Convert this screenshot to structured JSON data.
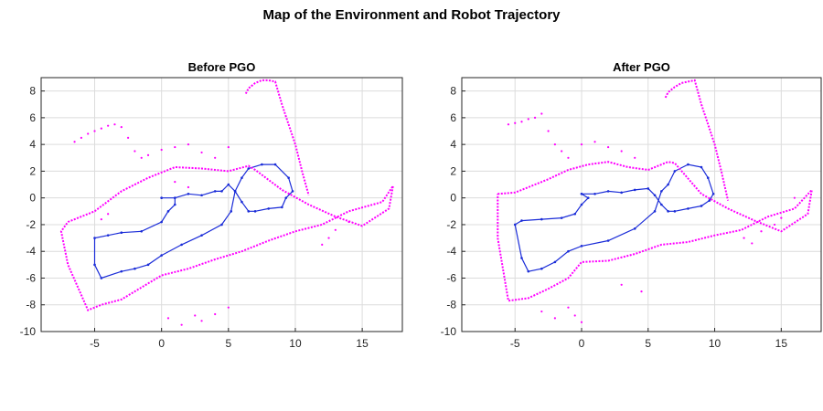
{
  "figure": {
    "title": "Map of the Environment and Robot Trajectory"
  },
  "colors": {
    "map_points": "#ff00ff",
    "trajectory": "#1a2cd8",
    "grid": "#dcdcdc",
    "axes": "#262626"
  },
  "chart_data": [
    {
      "type": "scatter",
      "title": "Before PGO",
      "xlabel": "",
      "ylabel": "",
      "xlim": [
        -9,
        18
      ],
      "ylim": [
        -10,
        9
      ],
      "xticks": [
        -5,
        0,
        5,
        10,
        15
      ],
      "yticks": [
        -10,
        -8,
        -6,
        -4,
        -2,
        0,
        2,
        4,
        6,
        8
      ],
      "grid": true,
      "series": [
        {
          "kind": "trajectory",
          "color": "#1a2cd8",
          "x": [
            0,
            1,
            2,
            3,
            4,
            4.5,
            5,
            5.5,
            6,
            6.5,
            7,
            8,
            9,
            9.3,
            9.8,
            9.5,
            8.5,
            7.5,
            6.5,
            6,
            5.5,
            5.2,
            4.5,
            3,
            1.5,
            0,
            -1,
            -2,
            -3,
            -4.5,
            -5,
            -5,
            -4,
            -3,
            -1.5,
            0,
            0.5,
            1,
            1,
            0
          ],
          "y": [
            0,
            0,
            0.3,
            0.2,
            0.5,
            0.5,
            1.0,
            0.5,
            -0.3,
            -1.0,
            -1.0,
            -0.8,
            -0.7,
            0,
            0.5,
            1.5,
            2.5,
            2.5,
            2.2,
            1.5,
            0.5,
            -1.0,
            -2.0,
            -2.8,
            -3.5,
            -4.3,
            -5.0,
            -5.3,
            -5.5,
            -6.0,
            -5.0,
            -3.0,
            -2.8,
            -2.6,
            -2.5,
            -1.8,
            -1.0,
            -0.5,
            0,
            0
          ]
        },
        {
          "kind": "map-outline",
          "color": "#ff00ff",
          "x": [
            -7,
            -5,
            -3,
            -1,
            1,
            3,
            5,
            6.5,
            7,
            9,
            11,
            13,
            15,
            17,
            17.3,
            16.5,
            14,
            12,
            10,
            8,
            6,
            4,
            2,
            0,
            -2,
            -3,
            -4.5,
            -5.5,
            -7,
            -7.5,
            -7
          ],
          "y": [
            -1.8,
            -1.0,
            0.5,
            1.5,
            2.3,
            2.2,
            2.0,
            2.4,
            2.1,
            0.6,
            -0.5,
            -1.4,
            -2.1,
            -0.8,
            0.9,
            -0.3,
            -1.0,
            -2.0,
            -2.5,
            -3.2,
            -4.0,
            -4.6,
            -5.3,
            -5.8,
            -7.0,
            -7.6,
            -8.0,
            -8.4,
            -5.0,
            -2.5,
            -1.8
          ]
        },
        {
          "kind": "map-wall-north",
          "color": "#ff00ff",
          "x": [
            6.3,
            6.5,
            7,
            7.5,
            8.0,
            8.5,
            9.0,
            9.5,
            10.0,
            10.5,
            11.0
          ],
          "y": [
            7.8,
            8.2,
            8.6,
            8.8,
            8.8,
            8.7,
            7.0,
            5.5,
            4.0,
            2.0,
            0.2
          ]
        },
        {
          "kind": "map-scatter",
          "color": "#ff00ff",
          "x": [
            -6.5,
            -6,
            -5.5,
            -5,
            -4.5,
            -4,
            -3.5,
            -3,
            -2.5,
            -2,
            -1.5,
            -1,
            0,
            1,
            2,
            3,
            4,
            5,
            0.5,
            1.5,
            2.5,
            -4,
            -4.5,
            12,
            12.5,
            13,
            14,
            3,
            4,
            5,
            1,
            2
          ],
          "y": [
            4.2,
            4.5,
            4.8,
            5.0,
            5.2,
            5.4,
            5.5,
            5.3,
            4.5,
            3.5,
            3.0,
            3.2,
            3.6,
            3.8,
            4.0,
            3.4,
            3.0,
            3.8,
            -9.0,
            -9.5,
            -8.8,
            -1.2,
            -1.6,
            -3.5,
            -3.0,
            -2.4,
            -1.8,
            -9.2,
            -8.7,
            -8.2,
            1.2,
            0.8
          ]
        }
      ]
    },
    {
      "type": "scatter",
      "title": "After PGO",
      "xlabel": "",
      "ylabel": "",
      "xlim": [
        -9,
        18
      ],
      "ylim": [
        -10,
        9
      ],
      "xticks": [
        -5,
        0,
        5,
        10,
        15
      ],
      "yticks": [
        -10,
        -8,
        -6,
        -4,
        -2,
        0,
        2,
        4,
        6,
        8
      ],
      "grid": true,
      "series": [
        {
          "kind": "trajectory",
          "color": "#1a2cd8",
          "x": [
            0,
            1,
            2,
            3,
            4,
            5,
            5.5,
            6,
            6.5,
            7,
            8,
            9,
            9.6,
            9.9,
            9.5,
            9.0,
            8.0,
            7.0,
            6.5,
            6.0,
            5.5,
            4.0,
            2.0,
            0,
            -1,
            -2,
            -3,
            -4,
            -4.5,
            -5,
            -4.5,
            -3,
            -1.5,
            -0.5,
            0,
            0.5,
            0
          ],
          "y": [
            0.3,
            0.3,
            0.5,
            0.4,
            0.6,
            0.7,
            0.2,
            -0.5,
            -1.0,
            -1.0,
            -0.8,
            -0.6,
            -0.2,
            0.3,
            1.5,
            2.3,
            2.5,
            2.0,
            1.0,
            0.5,
            -1.0,
            -2.3,
            -3.2,
            -3.6,
            -4.0,
            -4.8,
            -5.3,
            -5.5,
            -4.5,
            -2.0,
            -1.7,
            -1.6,
            -1.5,
            -1.2,
            -0.5,
            0,
            0.3
          ]
        },
        {
          "kind": "map-outline",
          "color": "#ff00ff",
          "x": [
            -6.3,
            -5,
            -4,
            -2.5,
            -1,
            0.5,
            2,
            3.5,
            5,
            6.5,
            7,
            9,
            11,
            13,
            15,
            17,
            17.3,
            16,
            14,
            12,
            10,
            8,
            6,
            4,
            2,
            0,
            -1,
            -2.5,
            -4,
            -5.5,
            -6.3,
            -6.3
          ],
          "y": [
            0.3,
            0.4,
            0.8,
            1.4,
            2.1,
            2.5,
            2.7,
            2.3,
            2.1,
            2.7,
            2.6,
            0.3,
            -0.8,
            -1.7,
            -2.5,
            -1.2,
            0.6,
            -0.8,
            -1.4,
            -2.4,
            -2.8,
            -3.3,
            -3.5,
            -4.2,
            -4.7,
            -4.8,
            -6.0,
            -6.8,
            -7.5,
            -7.7,
            -3.0,
            0.3
          ]
        },
        {
          "kind": "map-wall-north",
          "color": "#ff00ff",
          "x": [
            6.3,
            6.5,
            7,
            7.5,
            8.0,
            8.5,
            9.0,
            9.5,
            10.0,
            10.5,
            11.0
          ],
          "y": [
            7.5,
            7.9,
            8.3,
            8.6,
            8.7,
            8.8,
            7.0,
            5.5,
            4.0,
            2.0,
            -0.2
          ]
        },
        {
          "kind": "map-scatter",
          "color": "#ff00ff",
          "x": [
            -5.5,
            -5,
            -4.5,
            -4,
            -3.5,
            -3,
            -2.5,
            -2,
            -1.5,
            -1,
            0,
            1,
            2,
            3,
            4,
            -1,
            -0.5,
            0,
            12.2,
            12.8,
            13.5,
            14.5,
            15,
            16,
            3,
            4.5,
            -3,
            -2
          ],
          "y": [
            5.5,
            5.6,
            5.7,
            5.9,
            6.0,
            6.3,
            5.0,
            4.0,
            3.5,
            3.0,
            4.0,
            4.2,
            3.8,
            3.5,
            3.0,
            -8.2,
            -8.8,
            -9.3,
            -3.0,
            -3.4,
            -2.5,
            -2.0,
            -1.5,
            0,
            -6.5,
            -7.0,
            -8.5,
            -9.0
          ]
        }
      ]
    }
  ]
}
